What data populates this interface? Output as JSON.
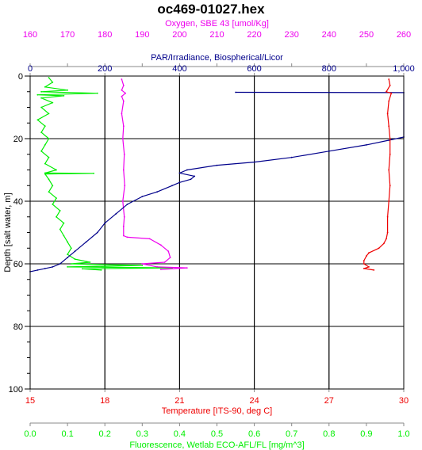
{
  "chart_data": {
    "type": "line",
    "title": "oc469-01027.hex",
    "grid": true,
    "y_axis": {
      "label": "Depth [salt water, m]",
      "range": [
        0,
        100
      ],
      "inverted": true,
      "ticks": [
        0,
        20,
        40,
        60,
        80,
        100
      ],
      "tick_labels": [
        "0",
        "20",
        "40",
        "60",
        "80",
        "100"
      ],
      "color": "#000000"
    },
    "x_axes": [
      {
        "id": "oxygen",
        "position": "top-outer",
        "label": "Oxygen, SBE 43 [umol/Kg]",
        "range": [
          160,
          260
        ],
        "ticks": [
          160,
          170,
          180,
          190,
          200,
          210,
          220,
          230,
          240,
          250,
          260
        ],
        "tick_labels": [
          "160",
          "170",
          "180",
          "190",
          "200",
          "210",
          "220",
          "230",
          "240",
          "250",
          "260"
        ],
        "color": "#ee00ee"
      },
      {
        "id": "par",
        "position": "top-inner",
        "label": "PAR/Irradiance, Biospherical/Licor",
        "range": [
          0,
          1000
        ],
        "ticks": [
          0,
          200,
          400,
          600,
          800,
          1000
        ],
        "tick_labels": [
          "0",
          "200",
          "400",
          "600",
          "800",
          "1,000"
        ],
        "color": "#00008b"
      },
      {
        "id": "temperature",
        "position": "bottom-inner",
        "label": "Temperature [ITS-90, deg C]",
        "range": [
          15,
          30
        ],
        "ticks": [
          15,
          18,
          21,
          24,
          27,
          30
        ],
        "tick_labels": [
          "15",
          "18",
          "21",
          "24",
          "27",
          "30"
        ],
        "color": "#ee0000"
      },
      {
        "id": "fluorescence",
        "position": "bottom-outer",
        "label": "Fluorescence, Wetlab ECO-AFL/FL [mg/m^3]",
        "range": [
          0.0,
          1.0
        ],
        "ticks": [
          0.0,
          0.1,
          0.2,
          0.3,
          0.4,
          0.5,
          0.6,
          0.7,
          0.8,
          0.9,
          1.0
        ],
        "tick_labels": [
          "0.0",
          "0.1",
          "0.2",
          "0.3",
          "0.4",
          "0.5",
          "0.6",
          "0.7",
          "0.8",
          "0.9",
          "1.0"
        ],
        "color": "#00ee00"
      }
    ],
    "series": [
      {
        "name": "Fluorescence, Wetlab ECO-AFL/FL [mg/m^3]",
        "axis": "fluorescence",
        "color": "#00ee00",
        "points": [
          [
            0.05,
            0.5
          ],
          [
            0.06,
            2
          ],
          [
            0.04,
            3.5
          ],
          [
            0.1,
            4.5
          ],
          [
            0.03,
            5
          ],
          [
            0.18,
            5.5
          ],
          [
            0.02,
            6
          ],
          [
            0.09,
            6.3
          ],
          [
            0.03,
            7
          ],
          [
            0.06,
            8.5
          ],
          [
            0.03,
            10
          ],
          [
            0.05,
            12
          ],
          [
            0.02,
            14
          ],
          [
            0.04,
            16
          ],
          [
            0.03,
            18
          ],
          [
            0.05,
            20
          ],
          [
            0.04,
            22
          ],
          [
            0.03,
            24
          ],
          [
            0.05,
            26
          ],
          [
            0.04,
            28
          ],
          [
            0.07,
            30
          ],
          [
            0.04,
            31
          ],
          [
            0.17,
            31.1
          ],
          [
            0.04,
            31.3
          ],
          [
            0.05,
            33
          ],
          [
            0.06,
            35
          ],
          [
            0.05,
            37
          ],
          [
            0.07,
            39
          ],
          [
            0.06,
            41
          ],
          [
            0.08,
            43
          ],
          [
            0.07,
            45
          ],
          [
            0.09,
            47
          ],
          [
            0.08,
            49
          ],
          [
            0.09,
            51
          ],
          [
            0.1,
            53
          ],
          [
            0.11,
            55
          ],
          [
            0.1,
            57
          ],
          [
            0.12,
            58.5
          ],
          [
            0.16,
            59.5
          ],
          [
            0.11,
            60
          ],
          [
            0.3,
            60.5
          ],
          [
            0.1,
            61
          ],
          [
            0.38,
            61.3
          ],
          [
            0.14,
            61.6
          ],
          [
            0.19,
            62
          ]
        ]
      },
      {
        "name": "Oxygen, SBE 43 [umol/Kg]",
        "axis": "oxygen",
        "color": "#ee00ee",
        "points": [
          [
            184.5,
            1
          ],
          [
            185,
            3
          ],
          [
            184.5,
            4.5
          ],
          [
            185.5,
            5.5
          ],
          [
            184.5,
            6.5
          ],
          [
            185,
            8
          ],
          [
            184.5,
            12
          ],
          [
            185,
            16
          ],
          [
            184.8,
            20
          ],
          [
            185.2,
            25
          ],
          [
            185,
            30
          ],
          [
            185.3,
            35
          ],
          [
            184.8,
            40
          ],
          [
            185.2,
            45
          ],
          [
            185,
            48
          ],
          [
            185,
            51
          ],
          [
            186,
            51.5
          ],
          [
            192,
            52
          ],
          [
            195,
            54
          ],
          [
            197,
            56
          ],
          [
            197.5,
            58
          ],
          [
            196,
            59.5
          ],
          [
            190,
            60
          ],
          [
            194,
            61
          ],
          [
            202,
            61.3
          ],
          [
            195,
            61.8
          ]
        ]
      },
      {
        "name": "PAR/Irradiance, Biospherical/Licor",
        "axis": "par",
        "color": "#00008b",
        "points": [
          [
            550,
            5.2
          ],
          [
            1000,
            5.3
          ],
          [
            1000,
            19.5
          ],
          [
            960,
            20.5
          ],
          [
            900,
            22
          ],
          [
            800,
            24
          ],
          [
            700,
            26
          ],
          [
            600,
            27.5
          ],
          [
            500,
            28.5
          ],
          [
            420,
            30
          ],
          [
            400,
            31
          ],
          [
            440,
            32
          ],
          [
            430,
            33
          ],
          [
            400,
            34
          ],
          [
            380,
            35
          ],
          [
            340,
            37
          ],
          [
            300,
            38.5
          ],
          [
            260,
            41
          ],
          [
            230,
            44
          ],
          [
            200,
            47
          ],
          [
            180,
            50
          ],
          [
            150,
            53
          ],
          [
            120,
            56
          ],
          [
            100,
            58
          ],
          [
            80,
            60
          ],
          [
            60,
            61
          ],
          [
            40,
            61.5
          ],
          [
            20,
            62
          ],
          [
            0,
            62.5
          ]
        ]
      },
      {
        "name": "Temperature [ITS-90, deg C]",
        "axis": "temperature",
        "color": "#ee0000",
        "points": [
          [
            29.4,
            1
          ],
          [
            29.45,
            3
          ],
          [
            29.3,
            5
          ],
          [
            29.5,
            5.5
          ],
          [
            29.4,
            8
          ],
          [
            29.35,
            12
          ],
          [
            29.4,
            16
          ],
          [
            29.45,
            20
          ],
          [
            29.45,
            25
          ],
          [
            29.4,
            30
          ],
          [
            29.45,
            35
          ],
          [
            29.4,
            40
          ],
          [
            29.35,
            45
          ],
          [
            29.35,
            50
          ],
          [
            29.3,
            52
          ],
          [
            29.2,
            53.5
          ],
          [
            29.0,
            55
          ],
          [
            28.6,
            56.5
          ],
          [
            28.5,
            57.5
          ],
          [
            28.4,
            59
          ],
          [
            28.4,
            60
          ],
          [
            28.6,
            61
          ],
          [
            28.4,
            61.5
          ],
          [
            28.8,
            62
          ]
        ]
      }
    ]
  }
}
